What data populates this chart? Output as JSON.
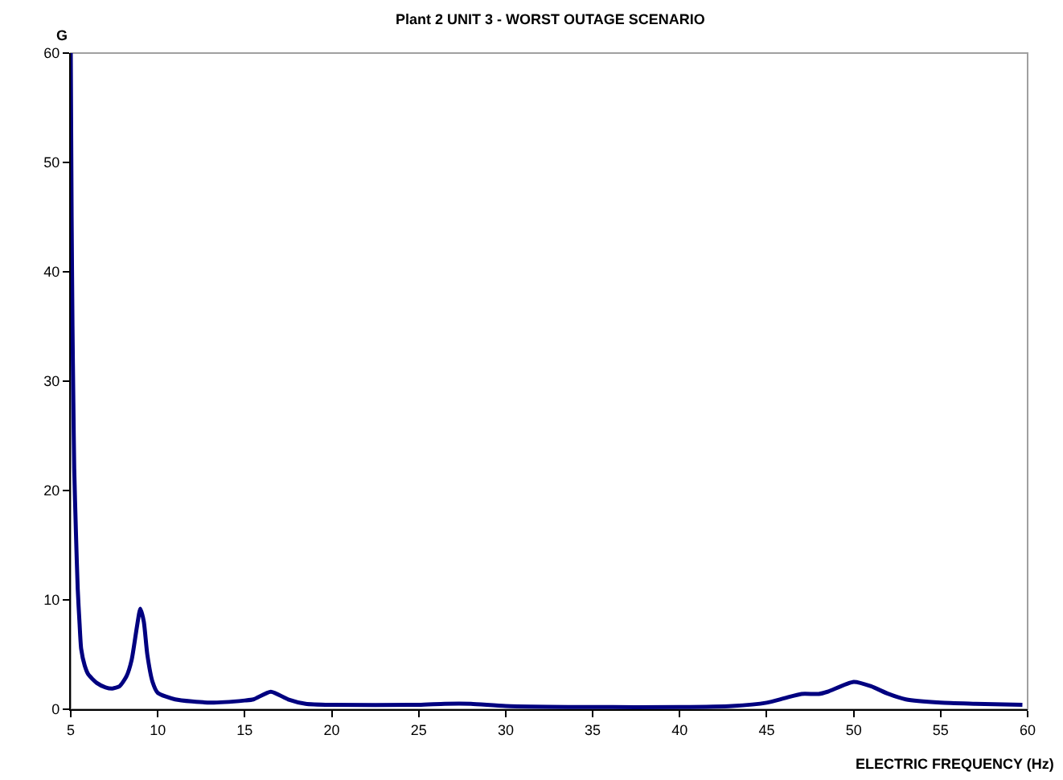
{
  "chart_data": {
    "type": "line",
    "title": "Plant 2 UNIT 3 - WORST OUTAGE SCENARIO",
    "xlabel": "ELECTRIC FREQUENCY (Hz)",
    "ylabel": "G",
    "x": [
      5.0,
      5.05,
      5.1,
      5.15,
      5.2,
      5.3,
      5.4,
      5.5,
      5.6,
      5.8,
      6.0,
      6.5,
      7.0,
      7.4,
      7.8,
      8.2,
      8.5,
      8.8,
      9.0,
      9.2,
      9.4,
      9.7,
      10,
      11,
      13,
      15,
      15.5,
      16.5,
      17.5,
      18.5,
      20,
      25,
      26.5,
      28,
      30,
      35,
      40,
      43,
      45,
      46,
      47,
      48,
      48.5,
      50,
      51,
      52,
      53,
      55,
      57,
      59.7
    ],
    "series": [
      {
        "color": "#000080",
        "values": [
          60,
          45,
          35,
          28,
          22,
          16,
          11,
          8,
          5.5,
          4,
          3.2,
          2.4,
          2.0,
          1.9,
          2.1,
          3,
          4.5,
          7.5,
          9.2,
          8,
          5,
          2.5,
          1.5,
          0.9,
          0.6,
          0.8,
          0.9,
          1.6,
          0.9,
          0.5,
          0.4,
          0.4,
          0.5,
          0.5,
          0.3,
          0.2,
          0.2,
          0.3,
          0.6,
          1.0,
          1.4,
          1.4,
          1.6,
          2.5,
          2.1,
          1.4,
          0.9,
          0.6,
          0.5,
          0.4
        ]
      }
    ],
    "xlim": [
      5,
      60
    ],
    "xticks": [
      5,
      10,
      15,
      20,
      25,
      30,
      35,
      40,
      45,
      50,
      55,
      60
    ],
    "ylim": [
      0,
      60
    ],
    "yticks": [
      0,
      10,
      20,
      30,
      40,
      50,
      60
    ],
    "grid": false,
    "marker": "none",
    "line_style": "solid"
  }
}
